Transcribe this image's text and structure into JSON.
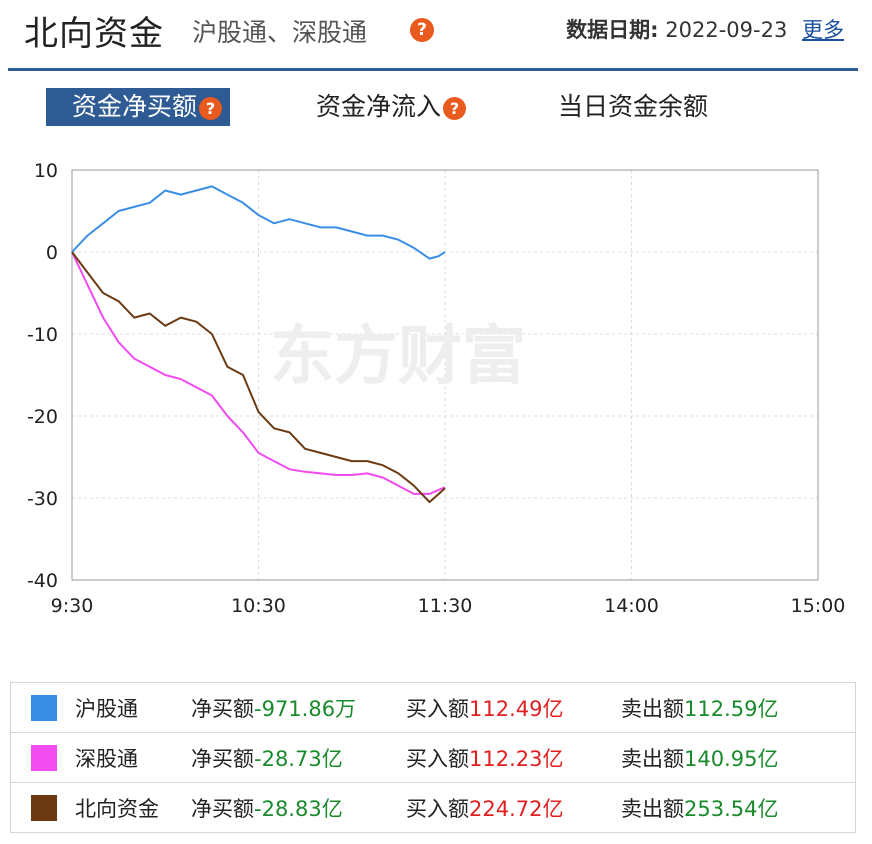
{
  "header": {
    "title": "北向资金",
    "subtitle": "沪股通、深股通",
    "help_icon": "question-icon",
    "date_label": "数据日期:",
    "date_value": "2022-09-23",
    "more_label": "更多"
  },
  "tabs": [
    {
      "label": "资金净买额",
      "active": true,
      "help": true
    },
    {
      "label": "资金净流入",
      "active": false,
      "help": true
    },
    {
      "label": "当日资金余额",
      "active": false,
      "help": false
    }
  ],
  "watermark": "东方财富",
  "chart_data": {
    "type": "line",
    "ylim": [
      -40,
      10
    ],
    "yticks": [
      10,
      0,
      -10,
      -20,
      -30,
      -40
    ],
    "x_tick_labels": [
      "9:30",
      "10:30",
      "11:30",
      "14:00",
      "15:00"
    ],
    "x_unit": "minutes of trading session (0=9:30, 120=11:30, 240=15:00)",
    "xlim": [
      0,
      240
    ],
    "grid": true,
    "series": [
      {
        "name": "沪股通",
        "color": "#3a8ee6",
        "x": [
          0,
          5,
          10,
          15,
          20,
          25,
          30,
          35,
          40,
          45,
          50,
          55,
          60,
          65,
          70,
          75,
          80,
          85,
          90,
          95,
          100,
          105,
          110,
          115,
          118,
          120
        ],
        "y": [
          0,
          2,
          3.5,
          5,
          5.5,
          6,
          7.5,
          7,
          7.5,
          8,
          7,
          6,
          4.5,
          3.5,
          4,
          3.5,
          3,
          3,
          2.5,
          2,
          2,
          1.5,
          0.5,
          -0.8,
          -0.5,
          0
        ]
      },
      {
        "name": "深股通",
        "color": "#f04cf0",
        "x": [
          0,
          5,
          10,
          15,
          20,
          25,
          30,
          35,
          40,
          45,
          50,
          55,
          60,
          65,
          70,
          75,
          80,
          85,
          90,
          95,
          100,
          105,
          110,
          115,
          118,
          120
        ],
        "y": [
          0,
          -4,
          -8,
          -11,
          -13,
          -14,
          -15,
          -15.5,
          -16.5,
          -17.5,
          -20,
          -22,
          -24.5,
          -25.5,
          -26.5,
          -26.8,
          -27,
          -27.2,
          -27.2,
          -27,
          -27.5,
          -28.5,
          -29.5,
          -29.5,
          -29,
          -28.7
        ]
      },
      {
        "name": "北向资金",
        "color": "#6b3a12",
        "x": [
          0,
          5,
          10,
          15,
          20,
          25,
          30,
          35,
          40,
          45,
          50,
          55,
          60,
          65,
          70,
          75,
          80,
          85,
          90,
          95,
          100,
          105,
          110,
          115,
          118,
          120
        ],
        "y": [
          0,
          -2.5,
          -5,
          -6,
          -8,
          -7.5,
          -9,
          -8,
          -8.5,
          -10,
          -14,
          -15,
          -19.5,
          -21.5,
          -22,
          -24,
          -24.5,
          -25,
          -25.5,
          -25.5,
          -26,
          -27,
          -28.5,
          -30.5,
          -29.5,
          -28.8
        ]
      }
    ]
  },
  "legend": [
    {
      "name": "沪股通",
      "color": "#3a8ee6",
      "net_label": "净买额",
      "net_value": "-971.86万",
      "buy_label": "买入额",
      "buy_value": "112.49亿",
      "sell_label": "卖出额",
      "sell_value": "112.59亿"
    },
    {
      "name": "深股通",
      "color": "#f04cf0",
      "net_label": "净买额",
      "net_value": "-28.73亿",
      "buy_label": "买入额",
      "buy_value": "112.23亿",
      "sell_label": "卖出额",
      "sell_value": "140.95亿"
    },
    {
      "name": "北向资金",
      "color": "#6b3a12",
      "net_label": "净买额",
      "net_value": "-28.83亿",
      "buy_label": "买入额",
      "buy_value": "224.72亿",
      "sell_label": "卖出额",
      "sell_value": "253.54亿"
    }
  ]
}
